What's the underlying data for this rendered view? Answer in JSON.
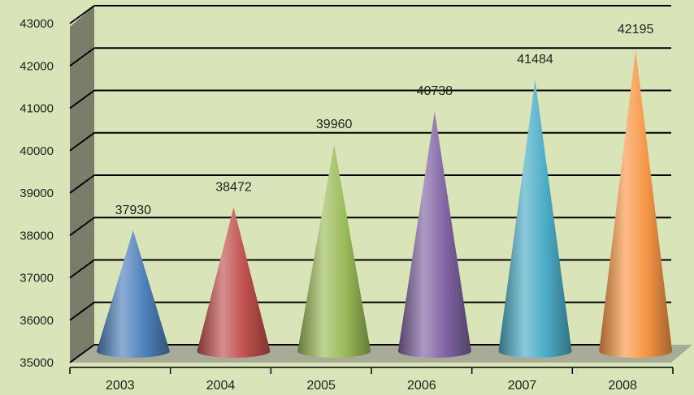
{
  "chart_data": {
    "type": "bar",
    "bar_shape": "cone",
    "categories": [
      "2003",
      "2004",
      "2005",
      "2006",
      "2007",
      "2008"
    ],
    "values": [
      37930,
      38472,
      39960,
      40738,
      41484,
      42195
    ],
    "data_labels": [
      "37930",
      "38472",
      "39960",
      "40738",
      "41484",
      "42195"
    ],
    "colors": [
      "#4f81bd",
      "#c0504d",
      "#9bbb59",
      "#8064a2",
      "#4bacc6",
      "#f79646"
    ],
    "ylim": [
      35000,
      43000
    ],
    "y_ticks": [
      "35000",
      "36000",
      "37000",
      "38000",
      "39000",
      "40000",
      "41000",
      "42000",
      "43000"
    ],
    "grid": true,
    "background_color": "#d9e4b8",
    "title": "",
    "xlabel": "",
    "ylabel": ""
  }
}
